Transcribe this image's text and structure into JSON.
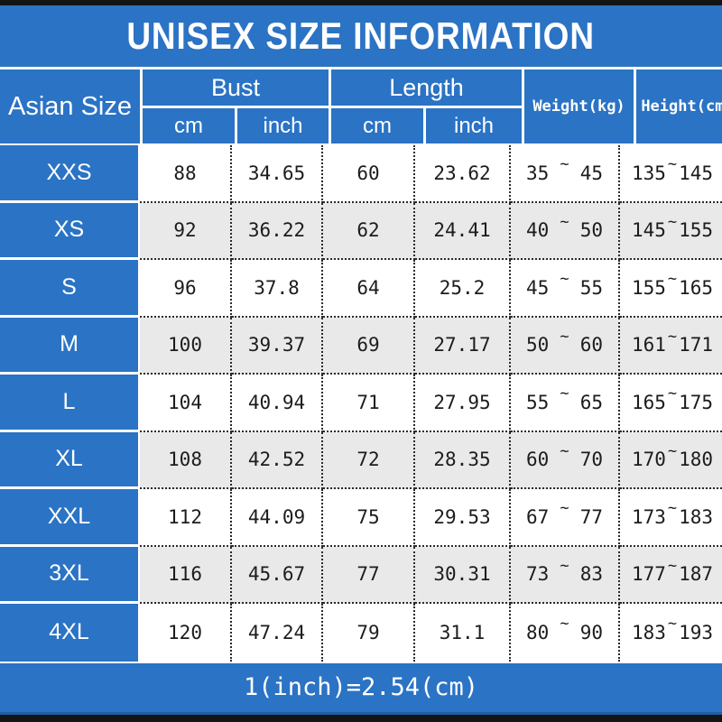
{
  "title": "UNISEX SIZE INFORMATION",
  "header": {
    "asian_size": "Asian Size",
    "bust": "Bust",
    "length": "Length",
    "weight": "Weight(kg)",
    "height": "Height(cm)",
    "unit_cm": "cm",
    "unit_inch": "inch"
  },
  "tilde": "~",
  "footer_note": "1(inch)=2.54(cm)",
  "colors": {
    "blue": "#2b73c4",
    "alt_row": "#e9e9e9",
    "bar": "#141414",
    "text": "#1c1c1c"
  },
  "rows": [
    {
      "size": "XXS",
      "bust_cm": "88",
      "bust_inch": "34.65",
      "length_cm": "60",
      "length_inch": "23.62",
      "weight_min": "35",
      "weight_max": "45",
      "height_min": "135",
      "height_max": "145"
    },
    {
      "size": "XS",
      "bust_cm": "92",
      "bust_inch": "36.22",
      "length_cm": "62",
      "length_inch": "24.41",
      "weight_min": "40",
      "weight_max": "50",
      "height_min": "145",
      "height_max": "155"
    },
    {
      "size": "S",
      "bust_cm": "96",
      "bust_inch": "37.8",
      "length_cm": "64",
      "length_inch": "25.2",
      "weight_min": "45",
      "weight_max": "55",
      "height_min": "155",
      "height_max": "165"
    },
    {
      "size": "M",
      "bust_cm": "100",
      "bust_inch": "39.37",
      "length_cm": "69",
      "length_inch": "27.17",
      "weight_min": "50",
      "weight_max": "60",
      "height_min": "161",
      "height_max": "171"
    },
    {
      "size": "L",
      "bust_cm": "104",
      "bust_inch": "40.94",
      "length_cm": "71",
      "length_inch": "27.95",
      "weight_min": "55",
      "weight_max": "65",
      "height_min": "165",
      "height_max": "175"
    },
    {
      "size": "XL",
      "bust_cm": "108",
      "bust_inch": "42.52",
      "length_cm": "72",
      "length_inch": "28.35",
      "weight_min": "60",
      "weight_max": "70",
      "height_min": "170",
      "height_max": "180"
    },
    {
      "size": "XXL",
      "bust_cm": "112",
      "bust_inch": "44.09",
      "length_cm": "75",
      "length_inch": "29.53",
      "weight_min": "67",
      "weight_max": "77",
      "height_min": "173",
      "height_max": "183"
    },
    {
      "size": "3XL",
      "bust_cm": "116",
      "bust_inch": "45.67",
      "length_cm": "77",
      "length_inch": "30.31",
      "weight_min": "73",
      "weight_max": "83",
      "height_min": "177",
      "height_max": "187"
    },
    {
      "size": "4XL",
      "bust_cm": "120",
      "bust_inch": "47.24",
      "length_cm": "79",
      "length_inch": "31.1",
      "weight_min": "80",
      "weight_max": "90",
      "height_min": "183",
      "height_max": "193"
    }
  ],
  "chart_data": {
    "type": "table",
    "title": "UNISEX SIZE INFORMATION",
    "columns": [
      "Asian Size",
      "Bust cm",
      "Bust inch",
      "Length cm",
      "Length inch",
      "Weight(kg)",
      "Height(cm)"
    ],
    "rows": [
      [
        "XXS",
        88,
        34.65,
        60,
        23.62,
        "35 ~ 45",
        "135 ~ 145"
      ],
      [
        "XS",
        92,
        36.22,
        62,
        24.41,
        "40 ~ 50",
        "145 ~ 155"
      ],
      [
        "S",
        96,
        37.8,
        64,
        25.2,
        "45 ~ 55",
        "155 ~ 165"
      ],
      [
        "M",
        100,
        39.37,
        69,
        27.17,
        "50 ~ 60",
        "161 ~ 171"
      ],
      [
        "L",
        104,
        40.94,
        71,
        27.95,
        "55 ~ 65",
        "165 ~ 175"
      ],
      [
        "XL",
        108,
        42.52,
        72,
        28.35,
        "60 ~ 70",
        "170 ~ 180"
      ],
      [
        "XXL",
        112,
        44.09,
        75,
        29.53,
        "67 ~ 77",
        "173 ~ 183"
      ],
      [
        "3XL",
        116,
        45.67,
        77,
        30.31,
        "73 ~ 83",
        "177 ~ 187"
      ],
      [
        "4XL",
        120,
        47.24,
        79,
        31.1,
        "80 ~ 90",
        "183 ~ 193"
      ]
    ],
    "note": "1(inch)=2.54(cm)"
  }
}
